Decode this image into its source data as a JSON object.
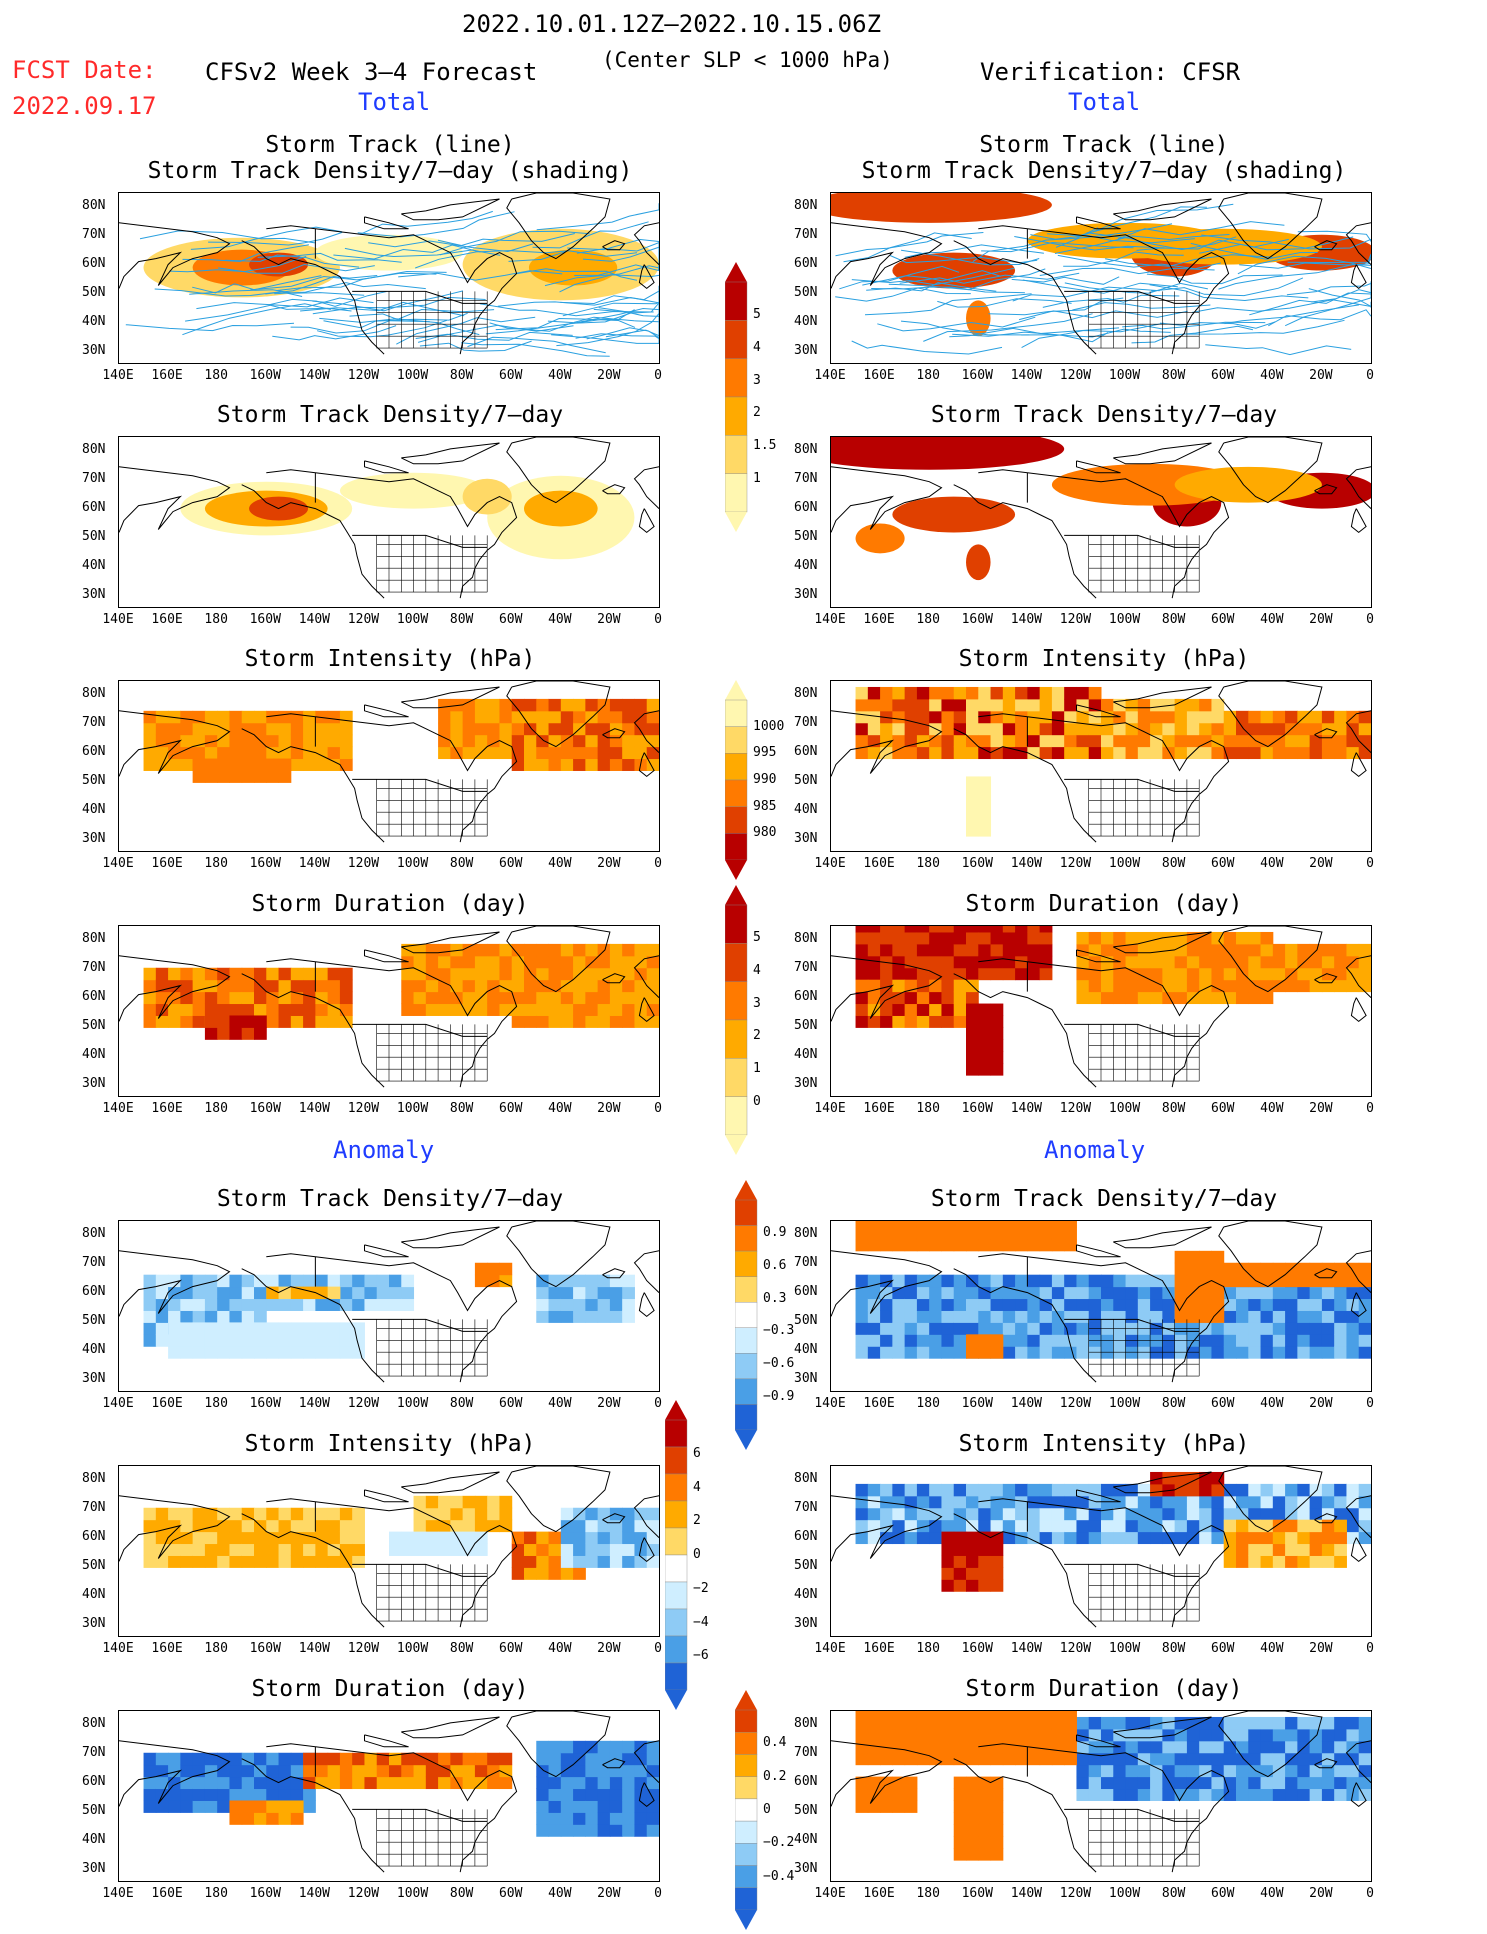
{
  "header": {
    "period": "2022.10.01.12Z–2022.10.15.06Z",
    "fcst_label": "FCST Date:",
    "fcst_date": "2022.09.17",
    "model": "CFSv2 Week 3–4 Forecast",
    "criterion": "(Center SLP < 1000 hPa)",
    "verification": "Verification: CFSR"
  },
  "sections": {
    "total": "Total",
    "anomaly": "Anomaly"
  },
  "panels": {
    "track_title_1": "Storm Track (line)",
    "track_title_2": "Storm Track Density/7–day (shading)",
    "density": "Storm Track Density/7–day",
    "intensity": "Storm Intensity (hPa)",
    "duration": "Storm Duration (day)"
  },
  "axes": {
    "lat_labels": [
      "80N",
      "70N",
      "60N",
      "50N",
      "40N",
      "30N"
    ],
    "lon_labels": [
      "140E",
      "160E",
      "180",
      "160W",
      "140W",
      "120W",
      "100W",
      "80W",
      "60W",
      "40W",
      "20W",
      "0"
    ]
  },
  "colorbars": {
    "density": [
      "5",
      "4",
      "3",
      "2",
      "1.5",
      "1"
    ],
    "intensity": [
      "1000",
      "995",
      "990",
      "985",
      "980"
    ],
    "duration": [
      "5",
      "4",
      "3",
      "2",
      "1",
      "0"
    ],
    "density_anom": [
      "0.9",
      "0.6",
      "0.3",
      "−0.3",
      "−0.6",
      "−0.9"
    ],
    "intensity_anom": [
      "6",
      "4",
      "2",
      "0",
      "−2",
      "−4",
      "−6"
    ],
    "duration_anom": [
      "0.4",
      "0.2",
      "0",
      "−0.2",
      "−0.4"
    ]
  },
  "colors": {
    "warm": [
      "#fff7b0",
      "#ffd966",
      "#ffaa00",
      "#ff7a00",
      "#e04000",
      "#b80000"
    ],
    "cool": [
      "#cfeeff",
      "#8ecbf5",
      "#4a9fe6",
      "#1f63d6"
    ],
    "track_line": "#2aa0e0"
  }
}
